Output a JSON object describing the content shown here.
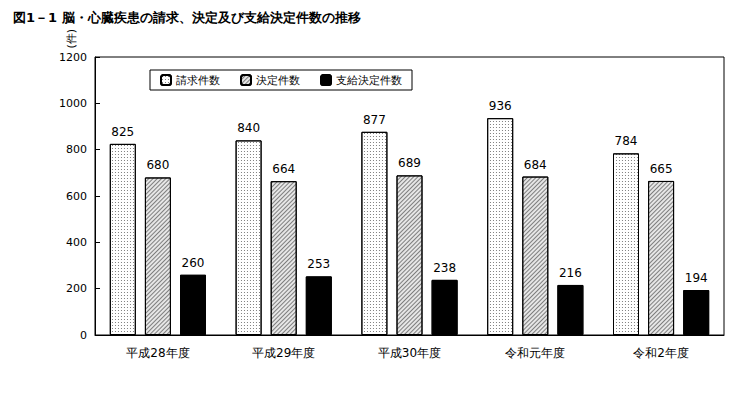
{
  "chart_data": {
    "type": "bar",
    "title": "図1－1 脳・心臓疾患の請求、決定及び支給決定件数の推移",
    "y_label": "(件)",
    "categories": [
      "平成28年度",
      "平成29年度",
      "平成30年度",
      "令和元年度",
      "令和2年度"
    ],
    "series": [
      {
        "name": "請求件数",
        "color": "#ffffff",
        "values": [
          825,
          840,
          877,
          936,
          784
        ]
      },
      {
        "name": "決定件数",
        "color": "#e6e6e6",
        "values": [
          680,
          664,
          689,
          684,
          665
        ]
      },
      {
        "name": "支給決定件数",
        "color": "#000000",
        "values": [
          260,
          253,
          238,
          216,
          194
        ]
      }
    ],
    "ylim": [
      0,
      1200
    ],
    "yticks": [
      0,
      200,
      400,
      600,
      800,
      1000,
      1200
    ],
    "grid": false,
    "legend": "top",
    "data_labels": true
  }
}
